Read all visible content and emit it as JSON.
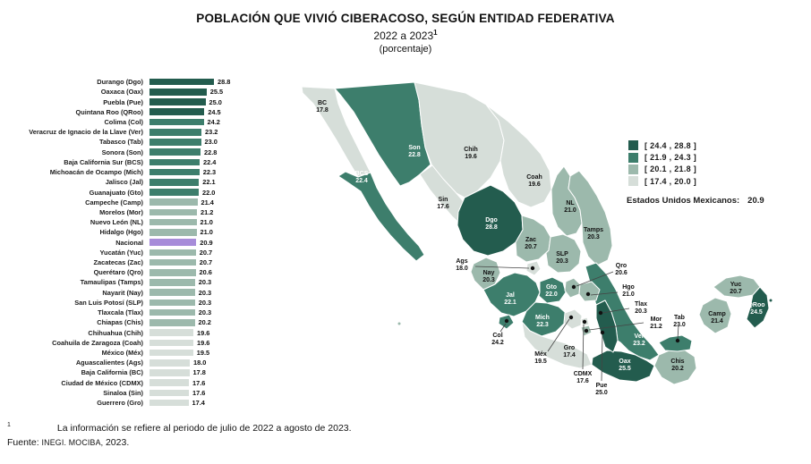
{
  "header": {
    "title": "POBLACIÓN QUE VIVIÓ CIBERACOSO, SEGÚN ENTIDAD FEDERATIVA",
    "subtitle": "2022 a 2023",
    "subtitle_sup": "1",
    "unit": "(porcentaje)"
  },
  "colors": {
    "class1": "#235c4e",
    "class2": "#3d7e6c",
    "class3": "#9cb9ac",
    "class4": "#d6ded9",
    "national": "#a78cd9"
  },
  "chart_data": [
    {
      "type": "bar",
      "orientation": "horizontal",
      "title": "POBLACIÓN QUE VIVIÓ CIBERACOSO, SEGÚN ENTIDAD FEDERATIVA 2022 a 2023 (porcentaje)",
      "xlim": [
        0,
        28.8
      ],
      "grid": false,
      "categories": [
        "Durango (Dgo)",
        "Oaxaca (Oax)",
        "Puebla (Pue)",
        "Quintana Roo (QRoo)",
        "Colima (Col)",
        "Veracruz de Ignacio de la Llave (Ver)",
        "Tabasco (Tab)",
        "Sonora (Son)",
        "Baja California Sur (BCS)",
        "Michoacán de Ocampo (Mich)",
        "Jalisco (Jal)",
        "Guanajuato (Gto)",
        "Campeche (Camp)",
        "Morelos (Mor)",
        "Nuevo León (NL)",
        "Hidalgo (Hgo)",
        "Nacional",
        "Yucatán (Yuc)",
        "Zacatecas (Zac)",
        "Querétaro (Qro)",
        "Tamaulipas (Tamps)",
        "Nayarit (Nay)",
        "San Luis Potosí (SLP)",
        "Tlaxcala (Tlax)",
        "Chiapas (Chis)",
        "Chihuahua (Chih)",
        "Coahuila de Zaragoza (Coah)",
        "México (Méx)",
        "Aguascalientes (Ags)",
        "Baja California (BC)",
        "Ciudad de México (CDMX)",
        "Sinaloa (Sin)",
        "Guerrero (Gro)"
      ],
      "values": [
        28.8,
        25.5,
        25.0,
        24.5,
        24.2,
        23.2,
        23.0,
        22.8,
        22.4,
        22.3,
        22.1,
        22.0,
        21.4,
        21.2,
        21.0,
        21.0,
        20.9,
        20.7,
        20.7,
        20.6,
        20.3,
        20.3,
        20.3,
        20.3,
        20.2,
        19.6,
        19.6,
        19.5,
        18.0,
        17.8,
        17.6,
        17.6,
        17.4
      ]
    },
    {
      "type": "heatmap",
      "subtype": "choropleth-map",
      "region": "Mexico (estados)",
      "legend_bins": [
        "[ 24.4 , 28.8 ]",
        "[ 21.9 , 24.3 ]",
        "[ 20.1 , 21.8 ]",
        "[ 17.4 , 20.0 ]"
      ],
      "national": {
        "label": "Estados Unidos Mexicanos",
        "value": 20.9
      },
      "states": [
        {
          "abbr": "BC",
          "value": 17.8
        },
        {
          "abbr": "BCS",
          "value": 22.4
        },
        {
          "abbr": "Son",
          "value": 22.8
        },
        {
          "abbr": "Sin",
          "value": 17.6
        },
        {
          "abbr": "Chih",
          "value": 19.6
        },
        {
          "abbr": "Coah",
          "value": 19.6
        },
        {
          "abbr": "NL",
          "value": 21.0
        },
        {
          "abbr": "Tamps",
          "value": 20.3
        },
        {
          "abbr": "Dgo",
          "value": 28.8
        },
        {
          "abbr": "Zac",
          "value": 20.7
        },
        {
          "abbr": "SLP",
          "value": 20.3
        },
        {
          "abbr": "Nay",
          "value": 20.3
        },
        {
          "abbr": "Ags",
          "value": 18.0
        },
        {
          "abbr": "Jal",
          "value": 22.1
        },
        {
          "abbr": "Gto",
          "value": 22.0
        },
        {
          "abbr": "Qro",
          "value": 20.6
        },
        {
          "abbr": "Hgo",
          "value": 21.0
        },
        {
          "abbr": "Col",
          "value": 24.2
        },
        {
          "abbr": "Mich",
          "value": 22.3
        },
        {
          "abbr": "Méx",
          "value": 19.5
        },
        {
          "abbr": "CDMX",
          "value": 17.6
        },
        {
          "abbr": "Tlax",
          "value": 20.3
        },
        {
          "abbr": "Mor",
          "value": 21.2
        },
        {
          "abbr": "Pue",
          "value": 25.0
        },
        {
          "abbr": "Ver",
          "value": 23.2
        },
        {
          "abbr": "Gro",
          "value": 17.4
        },
        {
          "abbr": "Oax",
          "value": 25.5
        },
        {
          "abbr": "Chis",
          "value": 20.2
        },
        {
          "abbr": "Tab",
          "value": 23.0
        },
        {
          "abbr": "Camp",
          "value": 21.4
        },
        {
          "abbr": "Yuc",
          "value": 20.7
        },
        {
          "abbr": "QRoo",
          "value": 24.5
        }
      ]
    }
  ],
  "map": {
    "legend": {
      "items": [
        {
          "label": "[ 24.4 , 28.8 ]",
          "class": "class1"
        },
        {
          "label": "[ 21.9 , 24.3 ]",
          "class": "class2"
        },
        {
          "label": "[ 20.1 , 21.8 ]",
          "class": "class3"
        },
        {
          "label": "[ 17.4 , 20.0 ]",
          "class": "class4"
        }
      ],
      "national_label": "Estados Unidos Mexicanos:",
      "national_value": "20.9"
    }
  },
  "footnote": {
    "marker": "1",
    "text": "La información se refiere al periodo de julio de 2022 a agosto de 2023."
  },
  "source": {
    "label": "Fuente: ",
    "agency": "INEGI. MOCIBA, ",
    "year": "2023."
  }
}
